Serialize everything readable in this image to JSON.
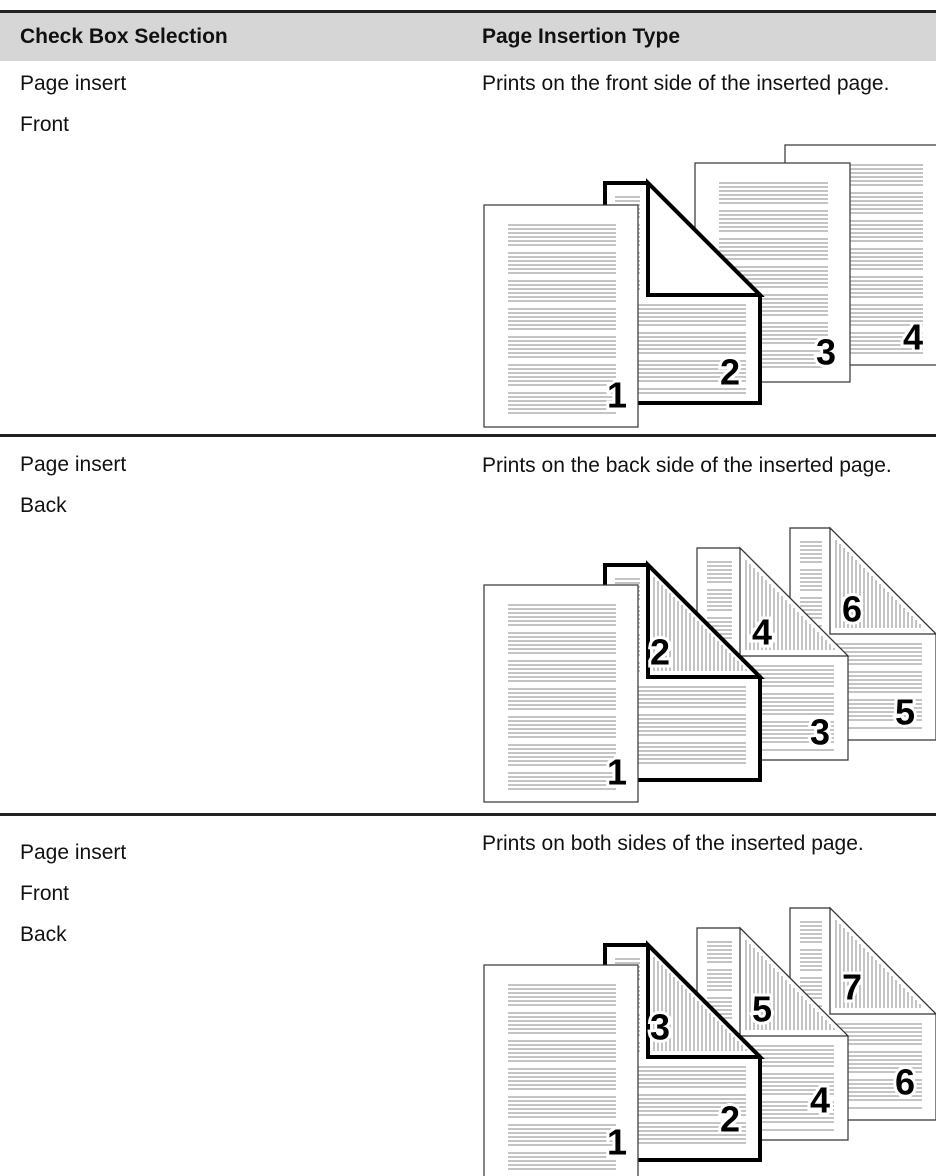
{
  "header": {
    "col1": "Check Box Selection",
    "col2": "Page Insertion Type"
  },
  "rows": [
    {
      "selection": [
        "Page insert",
        "Front"
      ],
      "description": "Prints on the front side of the inserted page.",
      "figure_labels": [
        "1",
        "2",
        "3",
        "4"
      ]
    },
    {
      "selection": [
        "Page insert",
        "Back"
      ],
      "description": "Prints on the back side of the inserted page.",
      "figure_labels": [
        "1",
        "2",
        "3",
        "4",
        "5",
        "6"
      ]
    },
    {
      "selection": [
        "Page insert",
        "Front",
        "Back"
      ],
      "description": "Prints on both sides of the inserted page.",
      "figure_labels": [
        "1",
        "2",
        "3",
        "4",
        "5",
        "6",
        "7"
      ]
    }
  ]
}
